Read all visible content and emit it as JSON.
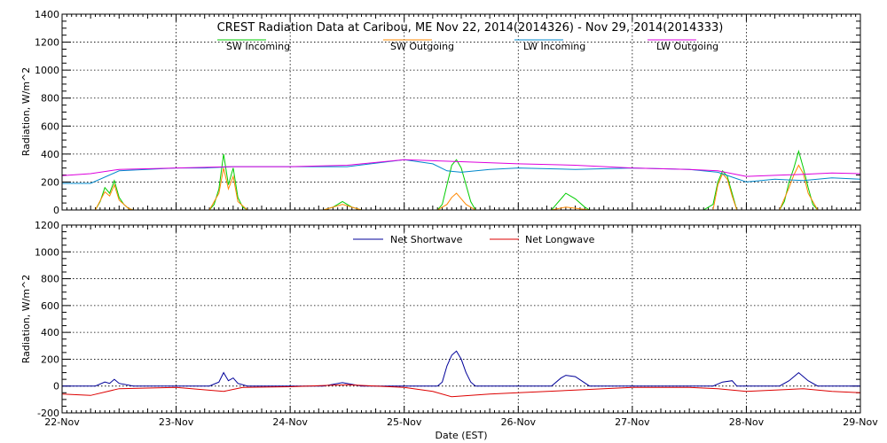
{
  "chart_data": [
    {
      "type": "line",
      "title": "CREST Radiation Data at Caribou, ME   Nov 22, 2014(2014326) - Nov 29, 2014(2014333)",
      "ylabel": "Radiation, W/m^2",
      "xlabel": "",
      "xlim": [
        "22-Nov",
        "29-Nov"
      ],
      "ylim": [
        0,
        1400
      ],
      "yticks": [
        "0",
        "200",
        "400",
        "600",
        "800",
        "1000",
        "1200",
        "1400"
      ],
      "xticks": [
        "22-Nov",
        "23-Nov",
        "24-Nov",
        "25-Nov",
        "26-Nov",
        "27-Nov",
        "28-Nov",
        "29-Nov"
      ],
      "grid": true,
      "legend": "top",
      "series": [
        {
          "name": "SW Incoming",
          "color": "#00cc00",
          "x": [
            "22-Nov 00:00",
            "22-Nov 07:00",
            "22-Nov 08:00",
            "22-Nov 09:00",
            "22-Nov 10:00",
            "22-Nov 11:00",
            "22-Nov 12:00",
            "22-Nov 13:00",
            "22-Nov 14:00",
            "22-Nov 15:00",
            "23-Nov 07:00",
            "23-Nov 08:00",
            "23-Nov 09:00",
            "23-Nov 10:00",
            "23-Nov 11:00",
            "23-Nov 12:00",
            "23-Nov 13:00",
            "23-Nov 14:00",
            "23-Nov 15:00",
            "24-Nov 07:00",
            "24-Nov 09:00",
            "24-Nov 11:00",
            "24-Nov 12:00",
            "24-Nov 13:00",
            "24-Nov 15:00",
            "25-Nov 07:00",
            "25-Nov 08:00",
            "25-Nov 09:00",
            "25-Nov 10:00",
            "25-Nov 11:00",
            "25-Nov 12:00",
            "25-Nov 13:00",
            "25-Nov 14:00",
            "25-Nov 15:00",
            "26-Nov 07:00",
            "26-Nov 08:00",
            "26-Nov 10:00",
            "26-Nov 12:00",
            "26-Nov 14:00",
            "26-Nov 15:00",
            "27-Nov 07:00",
            "27-Nov 12:00",
            "27-Nov 15:00",
            "27-Nov 17:00",
            "27-Nov 18:00",
            "27-Nov 19:00",
            "27-Nov 20:00",
            "27-Nov 21:00",
            "27-Nov 22:00",
            "28-Nov 07:00",
            "28-Nov 08:00",
            "28-Nov 09:00",
            "28-Nov 10:00",
            "28-Nov 11:00",
            "28-Nov 12:00",
            "28-Nov 13:00",
            "28-Nov 14:00",
            "28-Nov 15:00",
            "29-Nov 00:00"
          ],
          "y": [
            0,
            0,
            60,
            160,
            120,
            210,
            90,
            40,
            10,
            0,
            0,
            40,
            150,
            400,
            180,
            300,
            90,
            20,
            0,
            0,
            20,
            60,
            40,
            20,
            0,
            0,
            40,
            180,
            320,
            360,
            300,
            180,
            60,
            0,
            0,
            40,
            120,
            80,
            20,
            0,
            0,
            0,
            0,
            40,
            200,
            280,
            240,
            120,
            0,
            0,
            60,
            200,
            300,
            420,
            300,
            160,
            40,
            0,
            0
          ]
        },
        {
          "name": "SW Outgoing",
          "color": "#ff8800",
          "x": [
            "22-Nov 00:00",
            "22-Nov 07:00",
            "22-Nov 09:00",
            "22-Nov 10:00",
            "22-Nov 11:00",
            "22-Nov 12:00",
            "22-Nov 14:00",
            "22-Nov 15:00",
            "23-Nov 07:00",
            "23-Nov 09:00",
            "23-Nov 10:00",
            "23-Nov 11:00",
            "23-Nov 12:00",
            "23-Nov 13:00",
            "23-Nov 15:00",
            "24-Nov 07:00",
            "24-Nov 11:00",
            "24-Nov 15:00",
            "25-Nov 07:00",
            "25-Nov 09:00",
            "25-Nov 10:00",
            "25-Nov 11:00",
            "25-Nov 12:00",
            "25-Nov 13:00",
            "25-Nov 15:00",
            "26-Nov 07:00",
            "26-Nov 10:00",
            "26-Nov 15:00",
            "27-Nov 17:00",
            "27-Nov 18:00",
            "27-Nov 19:00",
            "27-Nov 20:00",
            "27-Nov 21:00",
            "27-Nov 22:00",
            "28-Nov 07:00",
            "28-Nov 09:00",
            "28-Nov 10:00",
            "28-Nov 11:00",
            "28-Nov 12:00",
            "28-Nov 13:00",
            "28-Nov 15:00",
            "29-Nov 00:00"
          ],
          "y": [
            0,
            0,
            130,
            100,
            180,
            70,
            10,
            0,
            0,
            120,
            300,
            150,
            240,
            60,
            0,
            0,
            40,
            0,
            0,
            40,
            90,
            120,
            80,
            40,
            0,
            0,
            20,
            0,
            0,
            180,
            260,
            220,
            100,
            0,
            0,
            160,
            250,
            320,
            260,
            120,
            0,
            0
          ]
        },
        {
          "name": "LW Incoming",
          "color": "#0088cc",
          "x": [
            "22-Nov 00:00",
            "22-Nov 06:00",
            "22-Nov 12:00",
            "23-Nov 00:00",
            "23-Nov 06:00",
            "23-Nov 12:00",
            "24-Nov 00:00",
            "24-Nov 12:00",
            "25-Nov 00:00",
            "25-Nov 06:00",
            "25-Nov 09:00",
            "25-Nov 12:00",
            "25-Nov 18:00",
            "26-Nov 00:00",
            "26-Nov 12:00",
            "27-Nov 00:00",
            "27-Nov 12:00",
            "27-Nov 18:00",
            "28-Nov 00:00",
            "28-Nov 06:00",
            "28-Nov 12:00",
            "28-Nov 18:00",
            "29-Nov 00:00"
          ],
          "y": [
            190,
            190,
            280,
            300,
            300,
            310,
            310,
            310,
            360,
            330,
            280,
            270,
            290,
            300,
            290,
            300,
            290,
            270,
            200,
            220,
            210,
            230,
            220
          ]
        },
        {
          "name": "LW Outgoing",
          "color": "#dd00dd",
          "x": [
            "22-Nov 00:00",
            "22-Nov 06:00",
            "22-Nov 12:00",
            "23-Nov 00:00",
            "23-Nov 12:00",
            "24-Nov 00:00",
            "24-Nov 12:00",
            "25-Nov 00:00",
            "25-Nov 12:00",
            "26-Nov 00:00",
            "26-Nov 12:00",
            "27-Nov 00:00",
            "27-Nov 12:00",
            "27-Nov 18:00",
            "28-Nov 00:00",
            "28-Nov 12:00",
            "28-Nov 18:00",
            "29-Nov 00:00"
          ],
          "y": [
            245,
            260,
            290,
            300,
            310,
            310,
            320,
            360,
            345,
            330,
            320,
            300,
            290,
            280,
            240,
            255,
            265,
            260
          ]
        }
      ]
    },
    {
      "type": "line",
      "title": "",
      "ylabel": "Radiation, W/m^2",
      "xlabel": "Date (EST)",
      "xlim": [
        "22-Nov",
        "29-Nov"
      ],
      "ylim": [
        -200,
        1200
      ],
      "yticks": [
        "-200",
        "0",
        "200",
        "400",
        "600",
        "800",
        "1000",
        "1200"
      ],
      "xticks": [
        "22-Nov",
        "23-Nov",
        "24-Nov",
        "25-Nov",
        "26-Nov",
        "27-Nov",
        "28-Nov",
        "29-Nov"
      ],
      "grid": true,
      "legend": "top",
      "series": [
        {
          "name": "Net Shortwave",
          "color": "#000099",
          "x": [
            "22-Nov 00:00",
            "22-Nov 07:00",
            "22-Nov 09:00",
            "22-Nov 10:00",
            "22-Nov 11:00",
            "22-Nov 12:00",
            "22-Nov 15:00",
            "23-Nov 07:00",
            "23-Nov 09:00",
            "23-Nov 10:00",
            "23-Nov 11:00",
            "23-Nov 12:00",
            "23-Nov 13:00",
            "23-Nov 15:00",
            "24-Nov 07:00",
            "24-Nov 11:00",
            "24-Nov 15:00",
            "25-Nov 07:00",
            "25-Nov 08:00",
            "25-Nov 09:00",
            "25-Nov 10:00",
            "25-Nov 11:00",
            "25-Nov 12:00",
            "25-Nov 13:00",
            "25-Nov 14:00",
            "25-Nov 15:00",
            "26-Nov 07:00",
            "26-Nov 09:00",
            "26-Nov 10:00",
            "26-Nov 12:00",
            "26-Nov 15:00",
            "27-Nov 17:00",
            "27-Nov 19:00",
            "27-Nov 21:00",
            "27-Nov 22:00",
            "28-Nov 07:00",
            "28-Nov 09:00",
            "28-Nov 11:00",
            "28-Nov 13:00",
            "28-Nov 15:00",
            "29-Nov 00:00"
          ],
          "y": [
            0,
            0,
            30,
            20,
            50,
            20,
            0,
            0,
            30,
            100,
            40,
            60,
            20,
            0,
            0,
            25,
            0,
            0,
            30,
            150,
            230,
            260,
            200,
            100,
            30,
            0,
            0,
            60,
            80,
            70,
            0,
            0,
            30,
            40,
            0,
            0,
            40,
            100,
            40,
            0,
            0
          ]
        },
        {
          "name": "Net Longwave",
          "color": "#dd0000",
          "x": [
            "22-Nov 00:00",
            "22-Nov 06:00",
            "22-Nov 12:00",
            "23-Nov 00:00",
            "23-Nov 10:00",
            "23-Nov 14:00",
            "24-Nov 00:00",
            "24-Nov 12:00",
            "25-Nov 00:00",
            "25-Nov 06:00",
            "25-Nov 10:00",
            "25-Nov 18:00",
            "26-Nov 00:00",
            "26-Nov 12:00",
            "27-Nov 00:00",
            "27-Nov 12:00",
            "27-Nov 18:00",
            "28-Nov 00:00",
            "28-Nov 12:00",
            "28-Nov 18:00",
            "29-Nov 00:00"
          ],
          "y": [
            -60,
            -70,
            -20,
            -10,
            -40,
            -10,
            -5,
            10,
            -10,
            -40,
            -80,
            -60,
            -50,
            -30,
            -10,
            -10,
            -20,
            -40,
            -20,
            -40,
            -50
          ]
        }
      ]
    }
  ]
}
